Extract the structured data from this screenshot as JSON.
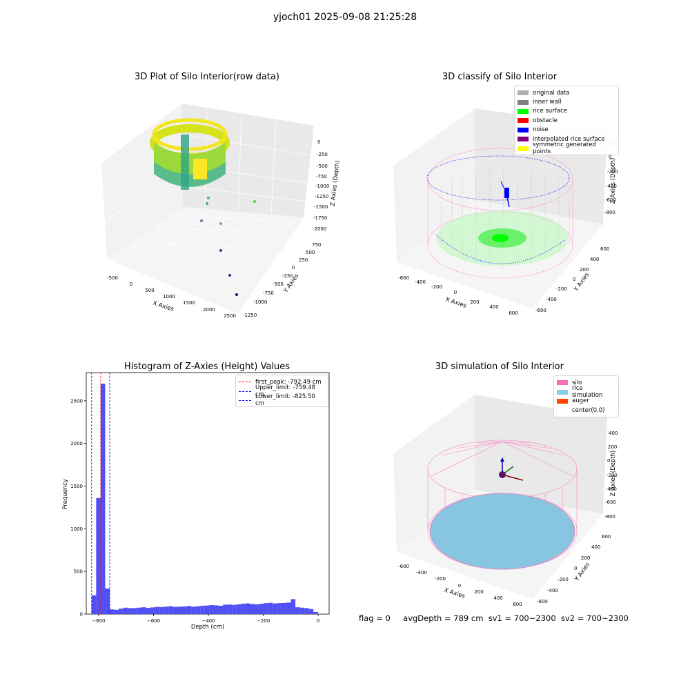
{
  "suptitle": "yjoch01 2025-09-08 21:25:28",
  "footer": {
    "flag": "flag = 0",
    "avg_depth": "avgDepth = 789 cm",
    "sv1": "sv1 = 700~2300",
    "sv2": "sv2 = 700~2300"
  },
  "chart_data": [
    {
      "type": "scatter",
      "title": "3D Plot of Silo Interior(row data)",
      "xlabel": "X Axies",
      "ylabel": "Y Axies",
      "zlabel": "Z Axies (Depth)",
      "x_ticks": [
        "-500",
        "0",
        "500",
        "1000",
        "1500",
        "2000",
        "2500"
      ],
      "y_ticks": [
        "750",
        "500",
        "250",
        "0",
        "-250",
        "-500",
        "-750",
        "-1000",
        "-1250"
      ],
      "z_ticks": [
        "0",
        "-250",
        "-500",
        "-750",
        "-1000",
        "-1250",
        "-1500",
        "-1750",
        "-2000"
      ],
      "colormap": [
        "#fde725",
        "#5ec962",
        "#21918c",
        "#3b528b",
        "#440154"
      ]
    },
    {
      "type": "scatter",
      "title": "3D classify of Silo Interior",
      "xlabel": "X Axies",
      "ylabel": "Y Axies",
      "zlabel": "Z Axies (Depth)",
      "x_ticks": [
        "-600",
        "-400",
        "-200",
        "0",
        "200",
        "400",
        "600"
      ],
      "y_ticks": [
        "600",
        "400",
        "200",
        "0",
        "-200",
        "-400",
        "-600"
      ],
      "z_ticks": [
        "200",
        "0",
        "-200",
        "-400",
        "-600",
        "-800"
      ],
      "legend": [
        {
          "label": "original data",
          "color": "#b0b0b0"
        },
        {
          "label": "inner wall",
          "color": "#808080"
        },
        {
          "label": "rice surface",
          "color": "#00ff00"
        },
        {
          "label": "obstacle",
          "color": "#ff0000"
        },
        {
          "label": "noise",
          "color": "#0000ff"
        },
        {
          "label": "interpolated rice surface",
          "color": "#800080"
        },
        {
          "label": "symmetric generated points",
          "color": "#ffff00"
        }
      ]
    },
    {
      "type": "bar",
      "title": "Histogram of Z-Axies (Height) Values",
      "xlabel": "Depth (cm)",
      "ylabel": "Frequency",
      "xlim": [
        -845,
        40
      ],
      "ylim": [
        0,
        2830
      ],
      "x_ticks": [
        -800,
        -600,
        -400,
        -200,
        0
      ],
      "y_ticks": [
        0,
        500,
        1000,
        1500,
        2000,
        2500
      ],
      "bar_color": "#5050f5",
      "bin_width": 16.5,
      "bin_starts": [
        -825.5,
        -809,
        -792.5,
        -776,
        -759.5,
        -743,
        -726.5,
        -710,
        -693.5,
        -677,
        -660.5,
        -644,
        -627.5,
        -611,
        -594.5,
        -578,
        -561.5,
        -545,
        -528.5,
        -512,
        -495.5,
        -479,
        -462.5,
        -446,
        -429.5,
        -413,
        -396.5,
        -380,
        -363.5,
        -347,
        -330.5,
        -314,
        -297.5,
        -281,
        -264.5,
        -248,
        -231.5,
        -215,
        -198.5,
        -182,
        -165.5,
        -149,
        -132.5,
        -116,
        -99.5,
        -83,
        -66.5,
        -50,
        -33.5,
        -17
      ],
      "values": [
        220,
        1360,
        2700,
        300,
        55,
        50,
        65,
        75,
        70,
        70,
        75,
        80,
        72,
        78,
        85,
        82,
        88,
        92,
        85,
        88,
        90,
        95,
        88,
        92,
        98,
        100,
        105,
        102,
        98,
        110,
        112,
        108,
        115,
        122,
        125,
        118,
        115,
        122,
        128,
        132,
        125,
        128,
        130,
        135,
        175,
        80,
        75,
        70,
        60,
        25
      ],
      "reference_lines": [
        {
          "label": "first_peak: -792.49 cm",
          "x": -792.49,
          "color": "#ff0000"
        },
        {
          "label": "Upper_limit: -759.48 cm",
          "x": -759.48,
          "color": "#0000ff"
        },
        {
          "label": "Lower_limit: -825.50 cm",
          "x": -825.5,
          "color": "#0000ff"
        }
      ]
    },
    {
      "type": "scatter",
      "title": "3D simulation of Silo Interior",
      "xlabel": "X Axies",
      "ylabel": "Y Axies",
      "zlabel": "Z Axies (Depth)",
      "x_ticks": [
        "-600",
        "-400",
        "-200",
        "0",
        "200",
        "400",
        "600"
      ],
      "y_ticks": [
        "600",
        "400",
        "200",
        "0",
        "-200",
        "-400",
        "-600"
      ],
      "z_ticks": [
        "400",
        "200",
        "0",
        "-200",
        "-400",
        "-600",
        "-800"
      ],
      "legend": [
        {
          "label": "silo",
          "color": "#ff69b4"
        },
        {
          "label": "rice simulation",
          "color": "#87ceeb"
        },
        {
          "label": "auger",
          "color": "#ff4500"
        },
        {
          "label": "center(0,0)",
          "color": "#ffffff"
        }
      ]
    }
  ]
}
